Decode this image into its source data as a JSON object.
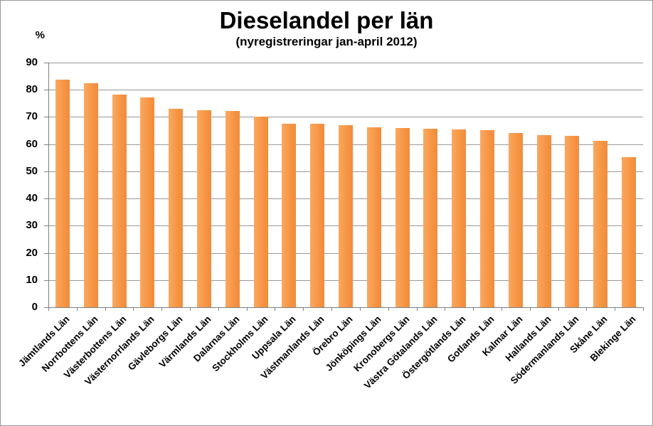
{
  "title": "Dieselandel per län",
  "subtitle": "(nyregistreringar jan-april 2012)",
  "y_axis_unit": "%",
  "colors": {
    "bar_fill": "#F79646",
    "bar_fill_light": "#FAA85F",
    "bar_fill_dark": "#F08C3C",
    "gridline": "#989898",
    "axis": "#808080",
    "frame_border": "#96999C",
    "text": "#000000",
    "background": "#FFFFFF"
  },
  "chart_data": {
    "type": "bar",
    "title": "Dieselandel per län",
    "subtitle": "(nyregistreringar jan-april 2012)",
    "xlabel": "",
    "ylabel": "%",
    "ylim": [
      0,
      90
    ],
    "yticks": [
      0,
      10,
      20,
      30,
      40,
      50,
      60,
      70,
      80,
      90
    ],
    "grid": true,
    "legend": false,
    "x_label_rotation_deg": 45,
    "categories": [
      "Jämtlands Län",
      "Norrbottens Län",
      "Västerbottens Län",
      "Västernorrlands Län",
      "Gävleborgs Län",
      "Värmlands Län",
      "Dalarnas Län",
      "Stockholms Län",
      "Uppsala Län",
      "Västmanlands Län",
      "Örebro Län",
      "Jönköpings Län",
      "Kronobergs Län",
      "Västra Götalands Län",
      "Östergötlands Län",
      "Gotlands Län",
      "Kalmar Län",
      "Hallands Län",
      "Södermanlands Län",
      "Skåne Län",
      "Blekinge Län"
    ],
    "values": [
      83.6,
      82.5,
      78.3,
      77.2,
      73.1,
      72.6,
      72.3,
      70.2,
      67.6,
      67.4,
      67.1,
      66.3,
      66.0,
      65.7,
      65.4,
      65.1,
      64.1,
      63.3,
      63.0,
      61.1,
      55.3
    ]
  }
}
